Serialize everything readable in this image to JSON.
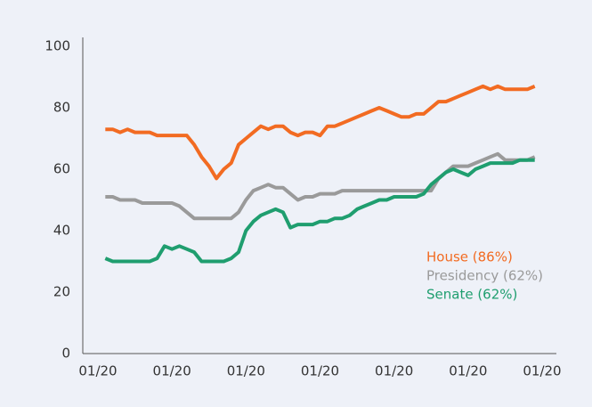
{
  "chart_data": {
    "type": "line",
    "categories": [
      "01/20",
      null,
      null,
      null,
      null,
      null,
      null,
      null,
      null,
      null,
      "01/20",
      null,
      null,
      null,
      null,
      null,
      null,
      null,
      null,
      null,
      "01/20",
      null,
      null,
      null,
      null,
      null,
      null,
      null,
      null,
      null,
      "01/20",
      null,
      null,
      null,
      null,
      null,
      null,
      null,
      null,
      null,
      "01/20",
      null,
      null,
      null,
      null,
      null,
      null,
      null,
      null,
      null,
      "01/20",
      null,
      null,
      null,
      null,
      null,
      null,
      null,
      null,
      null,
      "01/20"
    ],
    "series": [
      {
        "name": "House (86%)",
        "color": "#f26b22",
        "values": [
          null,
          73,
          73,
          72,
          73,
          72,
          72,
          72,
          71,
          71,
          71,
          71,
          71,
          68,
          64,
          61,
          57,
          60,
          62,
          68,
          70,
          72,
          74,
          73,
          74,
          74,
          72,
          71,
          72,
          72,
          71,
          74,
          74,
          75,
          76,
          77,
          78,
          79,
          80,
          79,
          78,
          77,
          77,
          78,
          78,
          80,
          82,
          82,
          83,
          84,
          85,
          86,
          87,
          86,
          87,
          86,
          86,
          86,
          86,
          87,
          null
        ]
      },
      {
        "name": "Presidency (62%)",
        "color": "#9a9a9a",
        "values": [
          null,
          51,
          51,
          50,
          50,
          50,
          49,
          49,
          49,
          49,
          49,
          48,
          46,
          44,
          44,
          44,
          44,
          44,
          44,
          46,
          50,
          53,
          54,
          55,
          54,
          54,
          52,
          50,
          51,
          51,
          52,
          52,
          52,
          53,
          53,
          53,
          53,
          53,
          53,
          53,
          53,
          53,
          53,
          53,
          53,
          53,
          57,
          59,
          61,
          61,
          61,
          62,
          63,
          64,
          65,
          63,
          63,
          63,
          63,
          64,
          null
        ]
      },
      {
        "name": "Senate (62%)",
        "color": "#1f9e6f",
        "values": [
          null,
          31,
          30,
          30,
          30,
          30,
          30,
          30,
          31,
          35,
          34,
          35,
          34,
          33,
          30,
          30,
          30,
          30,
          31,
          33,
          40,
          43,
          45,
          46,
          47,
          46,
          41,
          42,
          42,
          42,
          43,
          43,
          44,
          44,
          45,
          47,
          48,
          49,
          50,
          50,
          51,
          51,
          51,
          51,
          52,
          55,
          57,
          59,
          60,
          59,
          58,
          60,
          61,
          62,
          62,
          62,
          62,
          63,
          63,
          63,
          null
        ]
      }
    ],
    "ylim": [
      0,
      100
    ],
    "yticks": [
      0,
      20,
      40,
      60,
      80,
      100
    ]
  }
}
